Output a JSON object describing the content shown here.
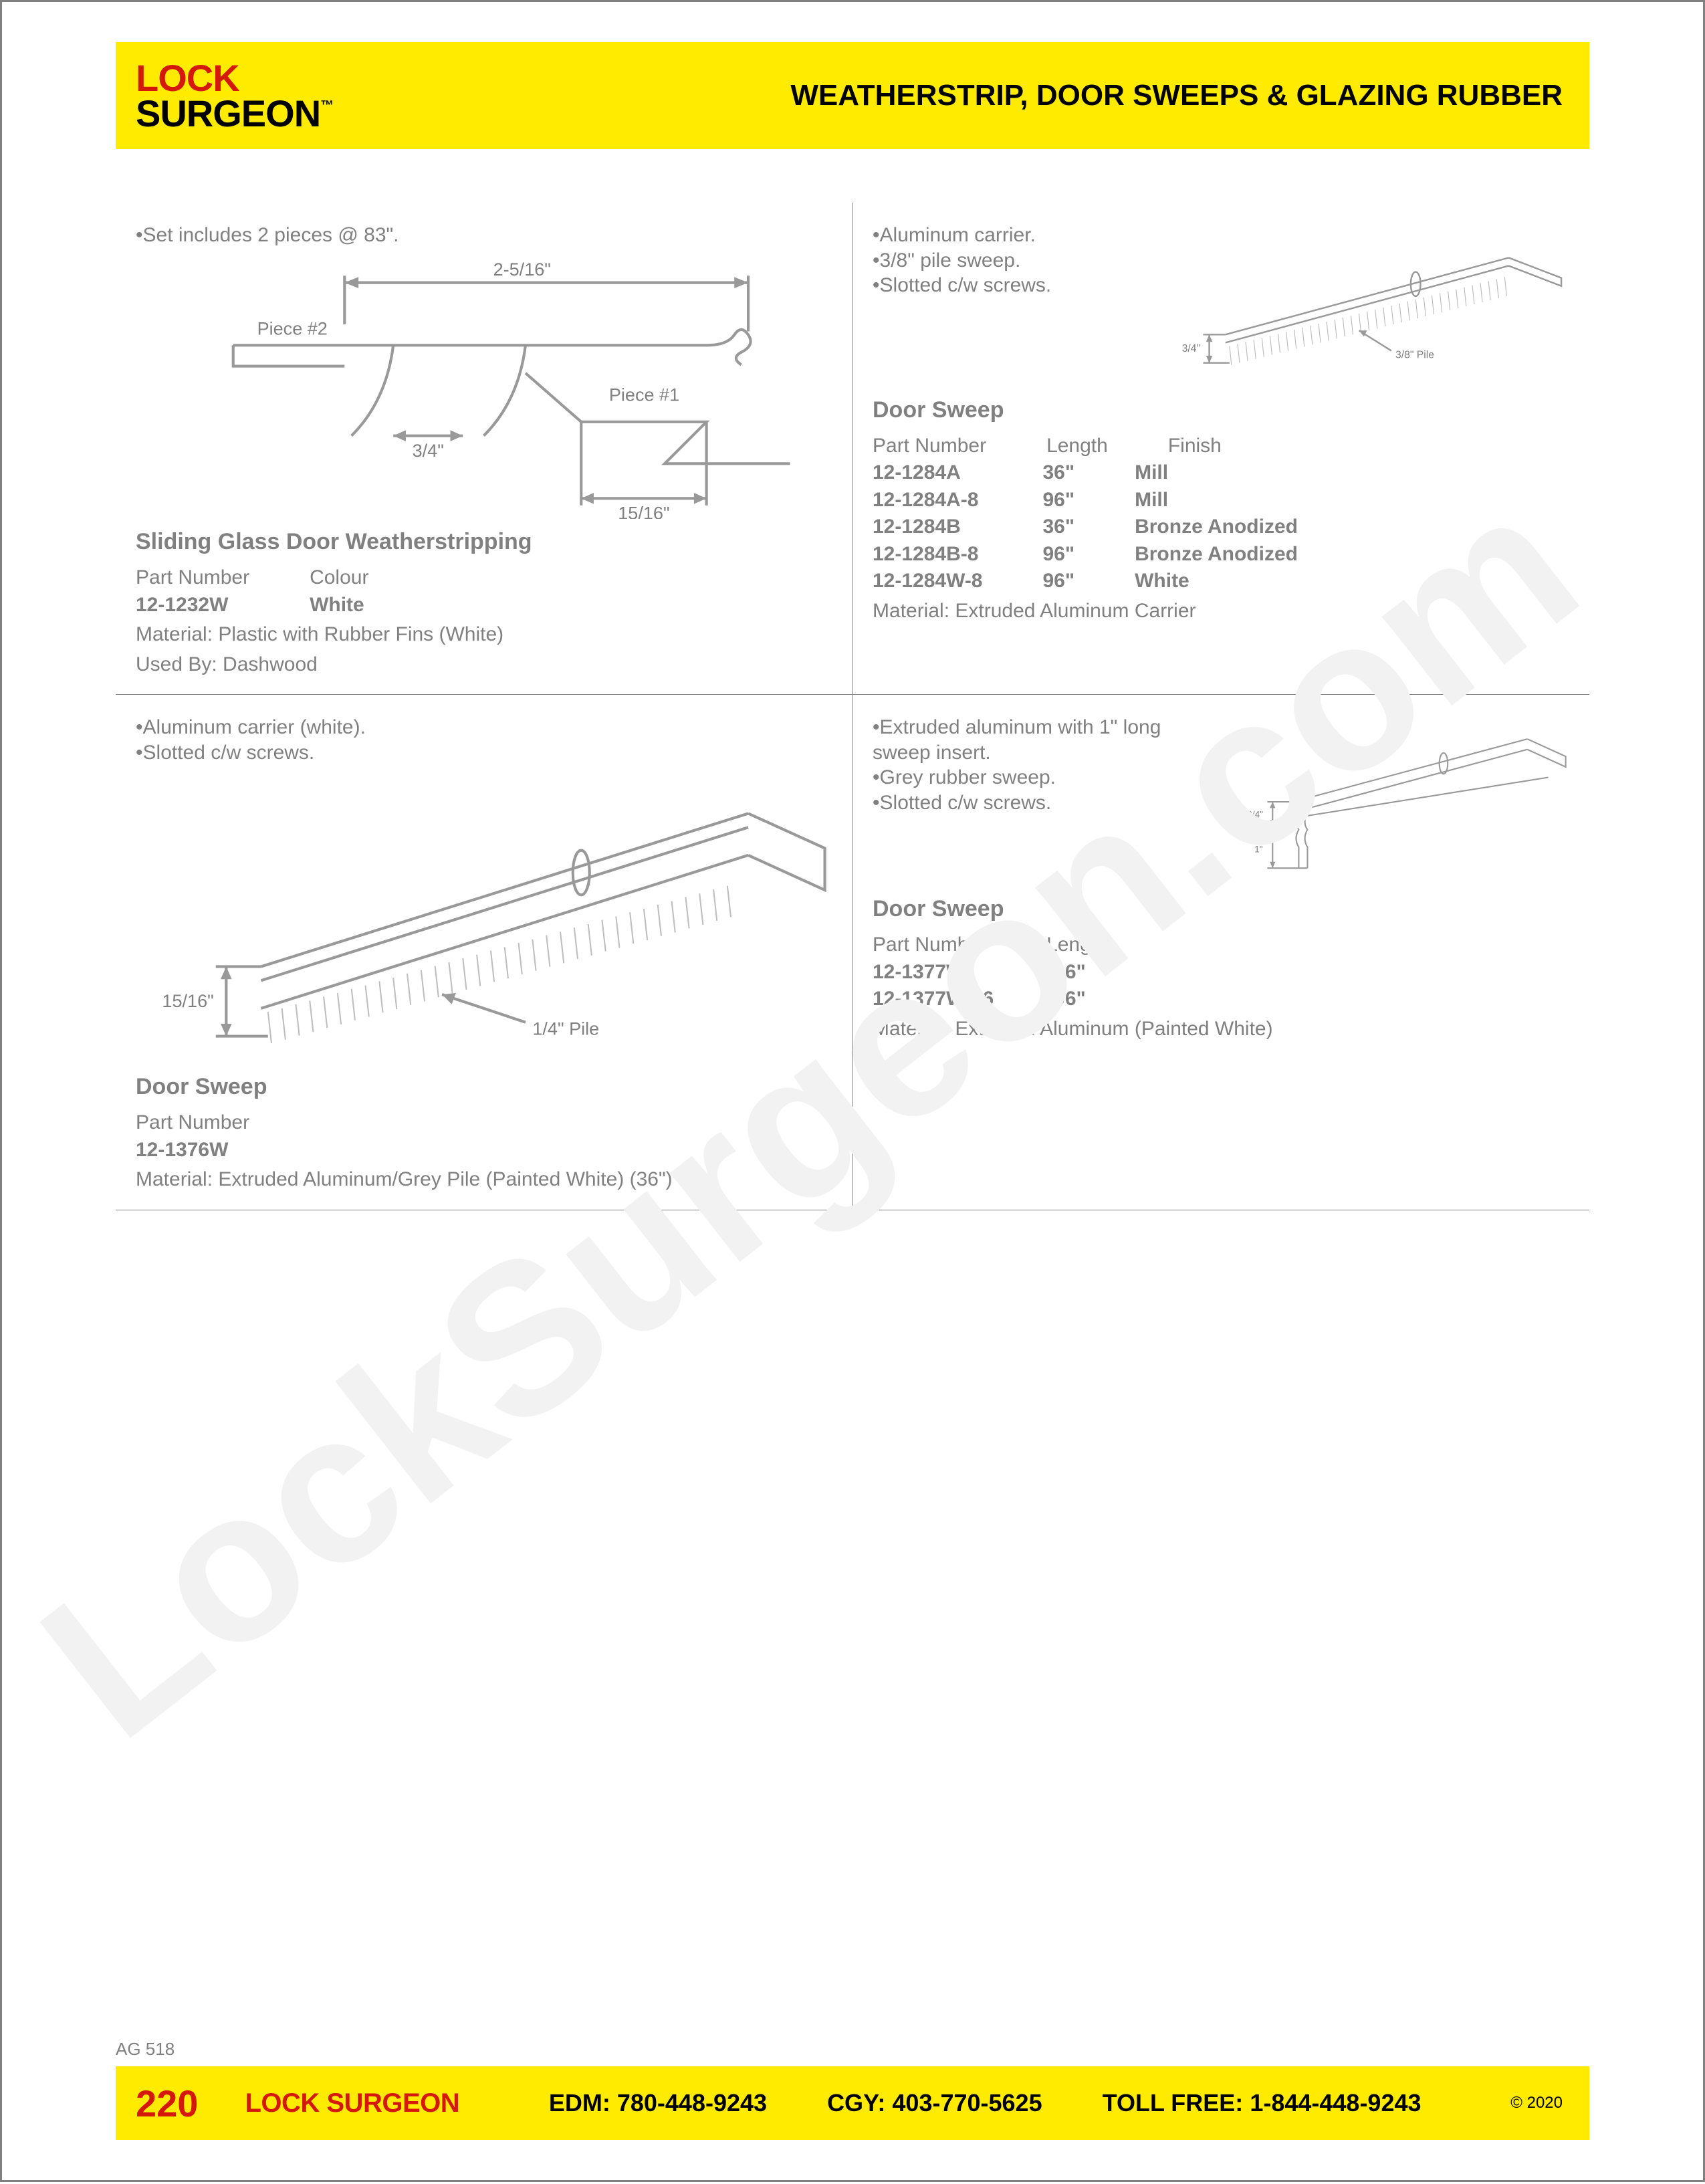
{
  "header": {
    "logo_line1": "LOCK",
    "logo_line2": "SURGEON",
    "logo_tm": "™",
    "title": "WEATHERSTRIP, DOOR SWEEPS & GLAZING RUBBER"
  },
  "colors": {
    "brand_yellow": "#ffeb00",
    "brand_red": "#d4190a",
    "text_grey": "#808080",
    "rule_grey": "#808080",
    "diagram_stroke": "#999999"
  },
  "watermark": {
    "text": "LockSurgeon.com",
    "angle_deg": -38,
    "fill": "#f2f2f2",
    "font_size": 320
  },
  "products": {
    "tl": {
      "notes": [
        "Set includes 2 pieces @ 83\"."
      ],
      "title": "Sliding Glass Door Weatherstripping",
      "columns": [
        "Part Number",
        "Colour"
      ],
      "rows": [
        {
          "part": "12-1232W",
          "c2": "White"
        }
      ],
      "meta": [
        {
          "k": "Material:",
          "v": " Plastic with Rubber Fins (White)"
        },
        {
          "k": "Used By:",
          "v": " Dashwood"
        }
      ],
      "diagram": {
        "labels": {
          "top": "2-5/16\"",
          "piece2": "Piece #2",
          "piece1": "Piece #1",
          "fin": "3/4\"",
          "tail": "15/16\""
        }
      }
    },
    "tr": {
      "notes": [
        "Aluminum carrier.",
        "3/8\" pile sweep.",
        "Slotted c/w screws."
      ],
      "title": "Door Sweep",
      "columns": [
        "Part Number",
        "Length",
        "Finish"
      ],
      "rows": [
        {
          "part": "12-1284A",
          "c2": "36\"",
          "c3": "Mill"
        },
        {
          "part": "12-1284A-8",
          "c2": "96\"",
          "c3": "Mill"
        },
        {
          "part": "12-1284B",
          "c2": "36\"",
          "c3": "Bronze Anodized"
        },
        {
          "part": "12-1284B-8",
          "c2": "96\"",
          "c3": "Bronze Anodized"
        },
        {
          "part": "12-1284W-8",
          "c2": "96\"",
          "c3": "White"
        }
      ],
      "meta": [
        {
          "k": "Material:",
          "v": " Extruded Aluminum Carrier"
        }
      ],
      "diagram": {
        "labels": {
          "height": "3/4\"",
          "pile": "3/8\" Pile"
        }
      }
    },
    "bl": {
      "notes": [
        "Aluminum carrier (white).",
        "Slotted c/w screws."
      ],
      "title": "Door Sweep",
      "columns": [
        "Part Number"
      ],
      "rows": [
        {
          "part": "12-1376W"
        }
      ],
      "meta": [
        {
          "k": "Material:",
          "v": " Extruded Aluminum/Grey Pile (Painted White) (36\")"
        }
      ],
      "diagram": {
        "labels": {
          "height": "15/16\"",
          "pile": "1/4\" Pile"
        }
      }
    },
    "br": {
      "notes": [
        "Extruded aluminum with 1\" long sweep insert.",
        "Grey rubber sweep.",
        "Slotted c/w screws."
      ],
      "title": "Door Sweep",
      "columns": [
        "Part Number",
        "Length"
      ],
      "rows": [
        {
          "part": "12-1377W",
          "c2": "36\""
        },
        {
          "part": "12-1377W-96",
          "c2": "96\""
        }
      ],
      "meta": [
        {
          "k": "Material:",
          "v": " Extruded Aluminum (Painted White)"
        }
      ],
      "diagram": {
        "labels": {
          "height": "3/4\"",
          "sweep": "1\""
        }
      }
    }
  },
  "footer": {
    "page_code": "AG 518",
    "page_number": "220",
    "brand": "LOCK SURGEON",
    "contacts": {
      "edm_label": "EDM:",
      "edm_phone": "780-448-9243",
      "cgy_label": "CGY:",
      "cgy_phone": "403-770-5625",
      "tf_label": "TOLL FREE:",
      "tf_phone": "1-844-448-9243"
    },
    "copyright": "© 2020"
  }
}
